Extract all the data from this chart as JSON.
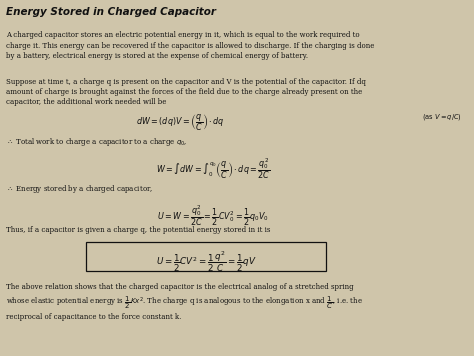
{
  "title": "Energy Stored in Charged Capacitor",
  "background_color": "#cfc5aa",
  "text_color": "#111111",
  "para1": "A charged capacitor stores an electric potential energy in it, which is equal to the work required to\ncharge it. This energy can be recovered if the capacitor is allowed to discharge. If the charging is done\nby a battery, electrical energy is stored at the expense of chemical energy of battery.",
  "para2": "Suppose at time t, a charge q is present on the capacitor and V is the potential of the capacitor. If dq\namount of charge is brought against the forces of the field due to the charge already present on the\ncapacitor, the additional work needed will be",
  "eq1": "$dW = (dq)V = \\left(\\dfrac{q}{C}\\right)\\cdot dq$",
  "eq1_note": "$(\\mathrm{as}\\ V = q/C)$",
  "para3": "$\\therefore$ Total work to charge a capacitor to a charge $q_0$,",
  "eq2": "$W = \\int dW = \\int_0^{q_0}\\left(\\dfrac{q}{C}\\right)\\cdot dq = \\dfrac{q_0^2}{2C}$",
  "para4": "$\\therefore$ Energy stored by a charged capacitor,",
  "eq3": "$U = W = \\dfrac{q_0^2}{2C} = \\dfrac{1}{2}CV_0^2 = \\dfrac{1}{2}q_0V_0$",
  "para5": "Thus, if a capacitor is given a charge q, the potential energy stored in it is",
  "eq4": "$U = \\dfrac{1}{2}CV^2 = \\dfrac{1}{2}\\dfrac{q^2}{C} = \\dfrac{1}{2}qV$",
  "para6": "The above relation shows that the charged capacitor is the electrical analog of a stretched spring\nwhose elastic potential energy is $\\dfrac{1}{2}Kx^2$. The charge q is analogous to the elongation x and $\\dfrac{1}{C}$, i.e. the\nreciprocal of capacitance to the force constant k.",
  "fs_title": 7.5,
  "fs_body": 5.0,
  "fs_eq": 5.8,
  "fs_note": 4.8
}
